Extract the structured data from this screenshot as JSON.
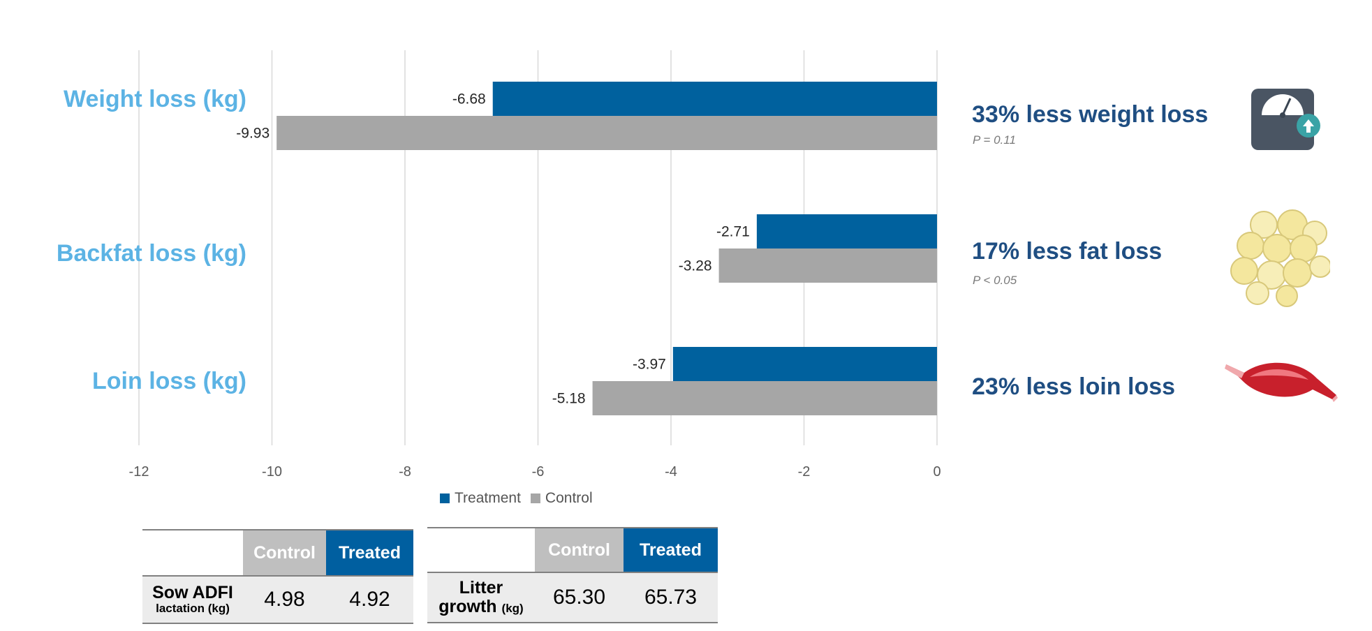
{
  "chart_data": {
    "type": "bar",
    "orientation": "horizontal",
    "categories": [
      "Weight loss (kg)",
      "Backfat loss (kg)",
      "Loin loss (kg)"
    ],
    "series": [
      {
        "name": "Treatment",
        "color": "#00619e",
        "values": [
          -6.68,
          -2.71,
          -3.97
        ]
      },
      {
        "name": "Control",
        "color": "#a6a6a6",
        "values": [
          -9.93,
          -3.28,
          -5.18
        ]
      }
    ],
    "data_labels": {
      "Treatment": [
        "-6.68",
        "-2.71",
        "-3.97"
      ],
      "Control": [
        "-9.93",
        "-3.28",
        "-5.18"
      ]
    },
    "xlim": [
      -12,
      0
    ],
    "xticks": [
      -12,
      -10,
      -8,
      -6,
      -4,
      -2,
      0
    ],
    "xtick_labels": [
      "-12",
      "-10",
      "-8",
      "-6",
      "-4",
      "-2",
      "0"
    ],
    "grid": true,
    "legend_position": "bottom"
  },
  "legend": {
    "treatment": "Treatment",
    "control": "Control"
  },
  "categories_text": {
    "weight": "Weight loss (kg)",
    "backfat": "Backfat loss (kg)",
    "loin": "Loin loss (kg)"
  },
  "annotations": {
    "weight": {
      "headline": "33% less weight loss",
      "p": "P = 0.11"
    },
    "backfat": {
      "headline": "17% less fat loss",
      "p": "P < 0.05"
    },
    "loin": {
      "headline": "23% less loin loss"
    }
  },
  "icons": {
    "weight": "scale-icon",
    "backfat": "fat-cells-icon",
    "loin": "muscle-icon"
  },
  "tables": {
    "feed": {
      "header_control": "Control",
      "header_treated": "Treated",
      "row_label": "Sow ADFI",
      "row_sublabel": "lactation (kg)",
      "control_value": "4.98",
      "treated_value": "4.92"
    },
    "litter": {
      "header_control": "Control",
      "header_treated": "Treated",
      "row_label": "Litter",
      "row_label2": "growth",
      "row_sublabel": "(kg)",
      "control_value": "65.30",
      "treated_value": "65.73"
    }
  },
  "colors": {
    "treatment": "#00619e",
    "control": "#a6a6a6",
    "category_label": "#5cb3e4",
    "headline": "#1f4e82"
  }
}
